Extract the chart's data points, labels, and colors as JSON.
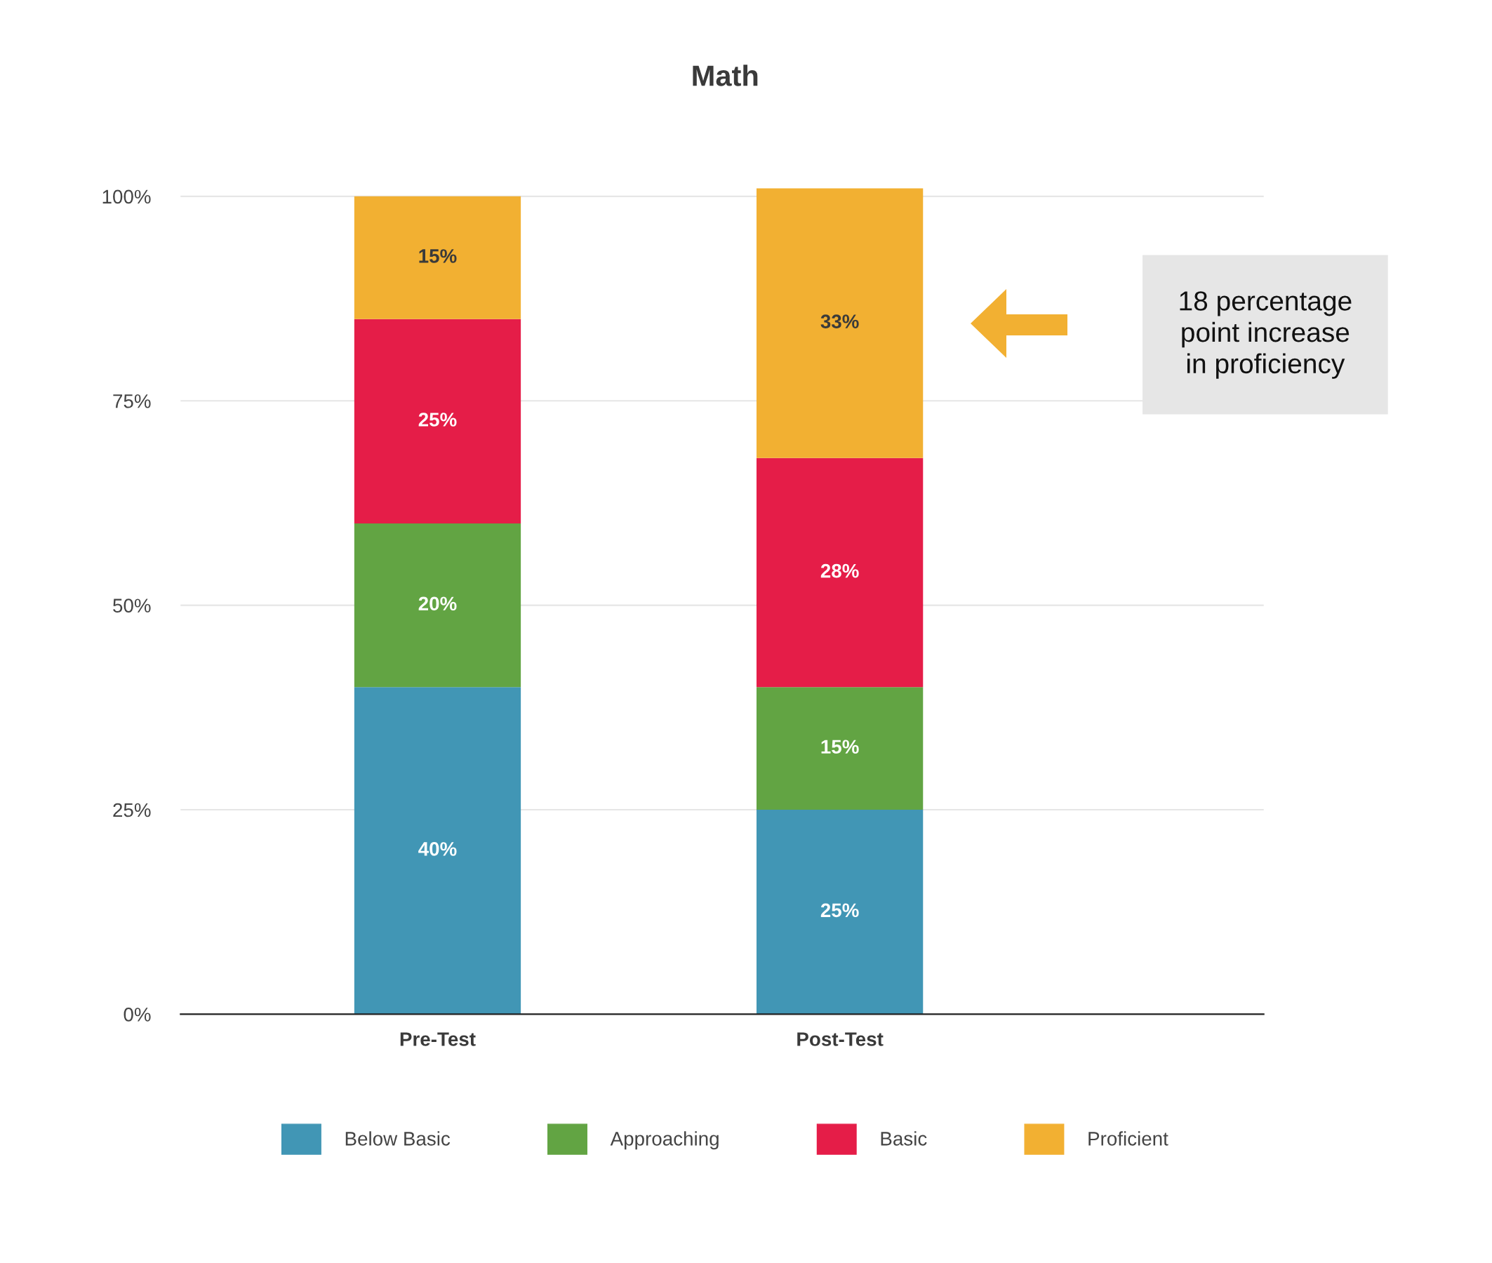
{
  "chart_data": {
    "type": "bar",
    "title": "Math",
    "stacked": true,
    "categories": [
      "Pre-Test",
      "Post-Test"
    ],
    "series": [
      {
        "name": "Below Basic",
        "color": "#4196b5",
        "values": [
          40,
          25
        ],
        "value_labels": [
          "40%",
          "25%"
        ]
      },
      {
        "name": "Approaching",
        "color": "#62a443",
        "values": [
          20,
          15
        ],
        "value_labels": [
          "20%",
          "15%"
        ]
      },
      {
        "name": "Basic",
        "color": "#e51d48",
        "values": [
          25,
          28
        ],
        "value_labels": [
          "25%",
          "28%"
        ]
      },
      {
        "name": "Proficient",
        "color": "#f2b032",
        "values": [
          15,
          33
        ],
        "value_labels": [
          "15%",
          "33%"
        ]
      }
    ],
    "ylim": [
      0,
      101
    ],
    "yticks": [
      {
        "value": 0,
        "label": "0%"
      },
      {
        "value": 25,
        "label": "25%"
      },
      {
        "value": 50,
        "label": "50%"
      },
      {
        "value": 75,
        "label": "75%"
      },
      {
        "value": 100,
        "label": "100%"
      }
    ],
    "grid": "y",
    "legend": "bottom",
    "annotations": [
      "18 percentage\npoint increase\nin proficiency"
    ]
  }
}
